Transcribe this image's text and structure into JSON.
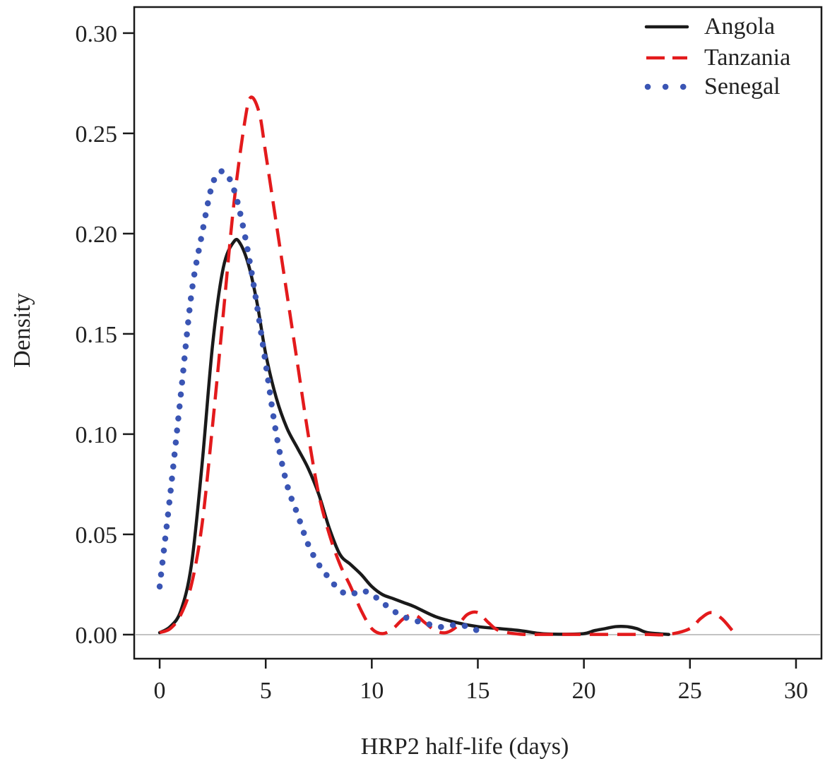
{
  "chart_data": {
    "type": "line",
    "title": "",
    "xlabel": "HRP2 half-life (days)",
    "ylabel": "Density",
    "xlim": [
      -1.2,
      31.2
    ],
    "ylim": [
      -0.012,
      0.313
    ],
    "xticks": [
      0,
      5,
      10,
      15,
      20,
      25,
      30
    ],
    "xtick_labels": [
      "0",
      "5",
      "10",
      "15",
      "20",
      "25",
      "30"
    ],
    "yticks": [
      0.0,
      0.05,
      0.1,
      0.15,
      0.2,
      0.25,
      0.3
    ],
    "ytick_labels": [
      "0.00",
      "0.05",
      "0.10",
      "0.15",
      "0.20",
      "0.25",
      "0.30"
    ],
    "grid": false,
    "reference_line": {
      "y": 0,
      "color": "#bfbfbf"
    },
    "legend": {
      "position": "top-right"
    },
    "series": [
      {
        "name": "Angola",
        "style": "solid",
        "color": "#1a1a1a",
        "x": [
          0,
          0.5,
          1,
          1.5,
          2,
          2.5,
          3,
          3.5,
          3.8,
          4.2,
          4.6,
          5,
          5.5,
          6,
          6.5,
          7,
          7.5,
          8,
          8.5,
          9,
          9.5,
          10,
          10.5,
          11,
          11.5,
          12,
          13,
          14,
          15,
          16,
          17,
          18,
          19,
          20,
          20.5,
          21,
          21.5,
          22,
          22.5,
          23,
          24
        ],
        "y": [
          0.001,
          0.004,
          0.012,
          0.035,
          0.085,
          0.145,
          0.183,
          0.196,
          0.195,
          0.184,
          0.165,
          0.14,
          0.118,
          0.103,
          0.093,
          0.083,
          0.07,
          0.053,
          0.04,
          0.035,
          0.03,
          0.024,
          0.02,
          0.018,
          0.016,
          0.014,
          0.009,
          0.006,
          0.004,
          0.003,
          0.002,
          0.0005,
          0.0002,
          0.0005,
          0.002,
          0.003,
          0.004,
          0.004,
          0.003,
          0.001,
          0.0001
        ]
      },
      {
        "name": "Tanzania",
        "style": "dashed",
        "color": "#e31a1c",
        "x": [
          0,
          0.5,
          1,
          1.5,
          2,
          2.5,
          3,
          3.5,
          4,
          4.3,
          4.7,
          5,
          5.5,
          6,
          6.5,
          7,
          7.5,
          8,
          8.5,
          9,
          9.5,
          10,
          10.5,
          11,
          11.5,
          12,
          12.5,
          13,
          13.5,
          14,
          14.5,
          15,
          15.5,
          16,
          17,
          18,
          19,
          20,
          21,
          22,
          23,
          24,
          25,
          25.5,
          26,
          26.5,
          27
        ],
        "y": [
          0.001,
          0.003,
          0.01,
          0.025,
          0.055,
          0.105,
          0.16,
          0.215,
          0.255,
          0.268,
          0.26,
          0.24,
          0.205,
          0.17,
          0.135,
          0.1,
          0.07,
          0.05,
          0.035,
          0.024,
          0.012,
          0.003,
          0.0005,
          0.003,
          0.008,
          0.01,
          0.006,
          0.002,
          0.001,
          0.004,
          0.01,
          0.011,
          0.006,
          0.002,
          0.0002,
          0.0001,
          0.0001,
          0.0001,
          0.0001,
          0.0001,
          0.0001,
          0.0001,
          0.003,
          0.008,
          0.011,
          0.008,
          0.002
        ]
      },
      {
        "name": "Senegal",
        "style": "dotted",
        "color": "#3a55b4",
        "x": [
          0,
          0.5,
          1,
          1.5,
          2,
          2.5,
          3,
          3.5,
          4,
          4.5,
          5,
          5.5,
          6,
          6.5,
          7,
          7.5,
          8,
          8.5,
          9,
          9.5,
          10,
          10.5,
          11,
          11.5,
          12,
          12.5,
          13,
          13.5,
          14,
          14.5,
          15
        ],
        "y": [
          0.024,
          0.07,
          0.12,
          0.17,
          0.2,
          0.225,
          0.231,
          0.222,
          0.2,
          0.17,
          0.135,
          0.1,
          0.075,
          0.06,
          0.045,
          0.035,
          0.028,
          0.022,
          0.02,
          0.022,
          0.02,
          0.016,
          0.012,
          0.009,
          0.007,
          0.006,
          0.004,
          0.004,
          0.005,
          0.004,
          0.002
        ]
      }
    ]
  }
}
